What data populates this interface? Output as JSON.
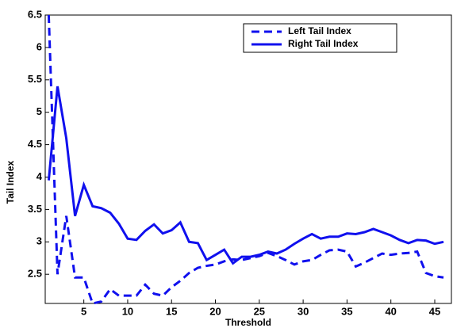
{
  "chart_data": {
    "type": "line",
    "x_label": "Threshold",
    "y_label": "Tail Index",
    "x": [
      1,
      2,
      3,
      4,
      5,
      6,
      7,
      8,
      9,
      10,
      11,
      12,
      13,
      14,
      15,
      16,
      17,
      18,
      19,
      20,
      21,
      22,
      23,
      24,
      25,
      26,
      27,
      28,
      29,
      30,
      31,
      32,
      33,
      34,
      35,
      36,
      37,
      38,
      39,
      40,
      41,
      42,
      43,
      44,
      45,
      46
    ],
    "series": [
      {
        "name": "Left Tail Index",
        "color": "#1010ee",
        "line_style": "dashed",
        "values": [
          6.5,
          2.5,
          3.4,
          2.45,
          2.45,
          2.05,
          2.08,
          2.27,
          2.17,
          2.17,
          2.17,
          2.34,
          2.2,
          2.17,
          2.3,
          2.4,
          2.52,
          2.6,
          2.63,
          2.65,
          2.7,
          2.73,
          2.72,
          2.75,
          2.78,
          2.83,
          2.78,
          2.72,
          2.65,
          2.7,
          2.72,
          2.8,
          2.87,
          2.88,
          2.85,
          2.62,
          2.68,
          2.75,
          2.82,
          2.8,
          2.82,
          2.83,
          2.85,
          2.52,
          2.47,
          2.45
        ]
      },
      {
        "name": "Right Tail Index",
        "color": "#1010ee",
        "line_style": "solid",
        "values": [
          3.95,
          5.4,
          4.6,
          3.4,
          3.88,
          3.55,
          3.52,
          3.45,
          3.28,
          3.05,
          3.03,
          3.17,
          3.27,
          3.13,
          3.18,
          3.3,
          3.0,
          2.98,
          2.72,
          2.8,
          2.88,
          2.67,
          2.77,
          2.77,
          2.8,
          2.85,
          2.82,
          2.88,
          2.97,
          3.05,
          3.12,
          3.05,
          3.08,
          3.08,
          3.13,
          3.12,
          3.15,
          3.2,
          3.15,
          3.1,
          3.03,
          2.98,
          3.03,
          3.02,
          2.97,
          3.0
        ]
      }
    ],
    "xlim": [
      0.6,
      46.9
    ],
    "ylim": [
      2.05,
      6.5
    ],
    "xticks": [
      5,
      10,
      15,
      20,
      25,
      30,
      35,
      40,
      45
    ],
    "yticks": [
      2.5,
      3,
      3.5,
      4,
      4.5,
      5,
      5.5,
      6,
      6.5
    ],
    "legend": "upper right"
  }
}
